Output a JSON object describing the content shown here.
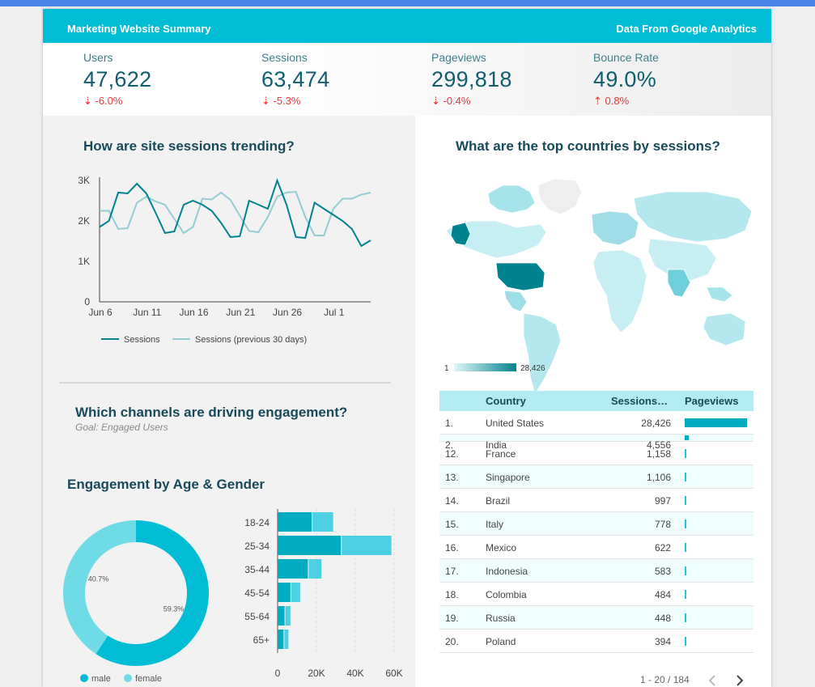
{
  "header": {
    "title": "Marketing Website Summary",
    "source": "Data From Google Analytics"
  },
  "colors": {
    "accent": "#00bcd4",
    "dark_teal": "#00838f",
    "light_teal": "#80deea",
    "negative": "#e53935"
  },
  "kpis": [
    {
      "label": "Users",
      "value": "47,622",
      "change": "-6.0%",
      "direction": "down"
    },
    {
      "label": "Sessions",
      "value": "63,474",
      "change": "-5.3%",
      "direction": "down"
    },
    {
      "label": "Pageviews",
      "value": "299,818",
      "change": "-0.4%",
      "direction": "down"
    },
    {
      "label": "Bounce Rate",
      "value": "49.0%",
      "change": "0.8%",
      "direction": "up"
    }
  ],
  "sessions_trend": {
    "heading": "How are site sessions trending?"
  },
  "channels": {
    "heading": "Which channels are driving engagement?",
    "goal": "Goal: Engaged Users"
  },
  "age_gender": {
    "heading": "Engagement by Age & Gender"
  },
  "countries": {
    "heading": "What are the top countries by sessions?",
    "legend_min": "1",
    "legend_max": "28,426",
    "columns": [
      "Country",
      "Sessions…",
      "Pageviews"
    ],
    "rows": [
      {
        "rank": "1.",
        "country": "United States",
        "sessions": "28,426",
        "pageviews_fraction": 1.0
      },
      {
        "rank": "2.",
        "country": "India",
        "sessions": "4,556",
        "pageviews_fraction": 0.07
      },
      {
        "rank": "12.",
        "country": "France",
        "sessions": "1,158",
        "pageviews_fraction": 0.015
      },
      {
        "rank": "13.",
        "country": "Singapore",
        "sessions": "1,106",
        "pageviews_fraction": 0.015
      },
      {
        "rank": "14.",
        "country": "Brazil",
        "sessions": "997",
        "pageviews_fraction": 0.015
      },
      {
        "rank": "15.",
        "country": "Italy",
        "sessions": "778",
        "pageviews_fraction": 0.015
      },
      {
        "rank": "16.",
        "country": "Mexico",
        "sessions": "622",
        "pageviews_fraction": 0.015
      },
      {
        "rank": "17.",
        "country": "Indonesia",
        "sessions": "583",
        "pageviews_fraction": 0.015
      },
      {
        "rank": "18.",
        "country": "Colombia",
        "sessions": "484",
        "pageviews_fraction": 0.015
      },
      {
        "rank": "19.",
        "country": "Russia",
        "sessions": "448",
        "pageviews_fraction": 0.015
      },
      {
        "rank": "20.",
        "country": "Poland",
        "sessions": "394",
        "pageviews_fraction": 0.015
      }
    ],
    "pagination": "1 - 20 / 184",
    "prev_icon": "chevron-left-icon",
    "next_icon": "chevron-right-icon"
  },
  "chart_data": [
    {
      "type": "line",
      "x_ticks": [
        "Jun 6",
        "Jun 11",
        "Jun 16",
        "Jun 21",
        "Jun 26",
        "Jul 1"
      ],
      "y_ticks": [
        "0",
        "1K",
        "2K",
        "3K"
      ],
      "ylim": [
        0,
        3000
      ],
      "x_range": [
        "Jun 6",
        "Jul 5"
      ],
      "series": [
        {
          "name": "Sessions",
          "color": "#00838f",
          "values": [
            1850,
            2000,
            2700,
            2680,
            2920,
            2680,
            2200,
            1700,
            1740,
            2400,
            2500,
            2400,
            2250,
            1950,
            1600,
            1620,
            2500,
            2400,
            2300,
            3000,
            2400,
            1600,
            1580,
            2450,
            2300,
            2150,
            2000,
            1800,
            1380,
            1520
          ]
        },
        {
          "name": "Sessions (previous 30 days)",
          "color": "#94ccd3",
          "values": [
            2250,
            2250,
            1800,
            1820,
            2450,
            2600,
            2480,
            2400,
            2050,
            1700,
            1850,
            2550,
            2530,
            2700,
            2520,
            2130,
            1750,
            1720,
            2100,
            2600,
            2700,
            2720,
            2100,
            1640,
            1640,
            2300,
            2550,
            2550,
            2650,
            2700
          ]
        }
      ],
      "legend": "bottom"
    },
    {
      "type": "pie",
      "donut": true,
      "slices": [
        {
          "name": "male",
          "value": 59.3,
          "label": "59.3%",
          "color": "#00bcd4"
        },
        {
          "name": "female",
          "value": 40.7,
          "label": "40.7%",
          "color": "#6fdbe6"
        }
      ],
      "legend": "bottom"
    },
    {
      "type": "bar",
      "orientation": "horizontal",
      "stacked": true,
      "categories": [
        "18-24",
        "25-34",
        "35-44",
        "45-54",
        "55-64",
        "65+"
      ],
      "series": [
        {
          "name": "male",
          "color": "#00acc1",
          "values": [
            18000,
            33000,
            16000,
            7000,
            4000,
            3500
          ]
        },
        {
          "name": "female",
          "color": "#4dd0e1",
          "values": [
            11000,
            26000,
            7000,
            5000,
            3000,
            2500
          ]
        }
      ],
      "x_ticks": [
        "0",
        "20K",
        "40K",
        "60K"
      ],
      "xlim": [
        0,
        60000
      ]
    }
  ]
}
